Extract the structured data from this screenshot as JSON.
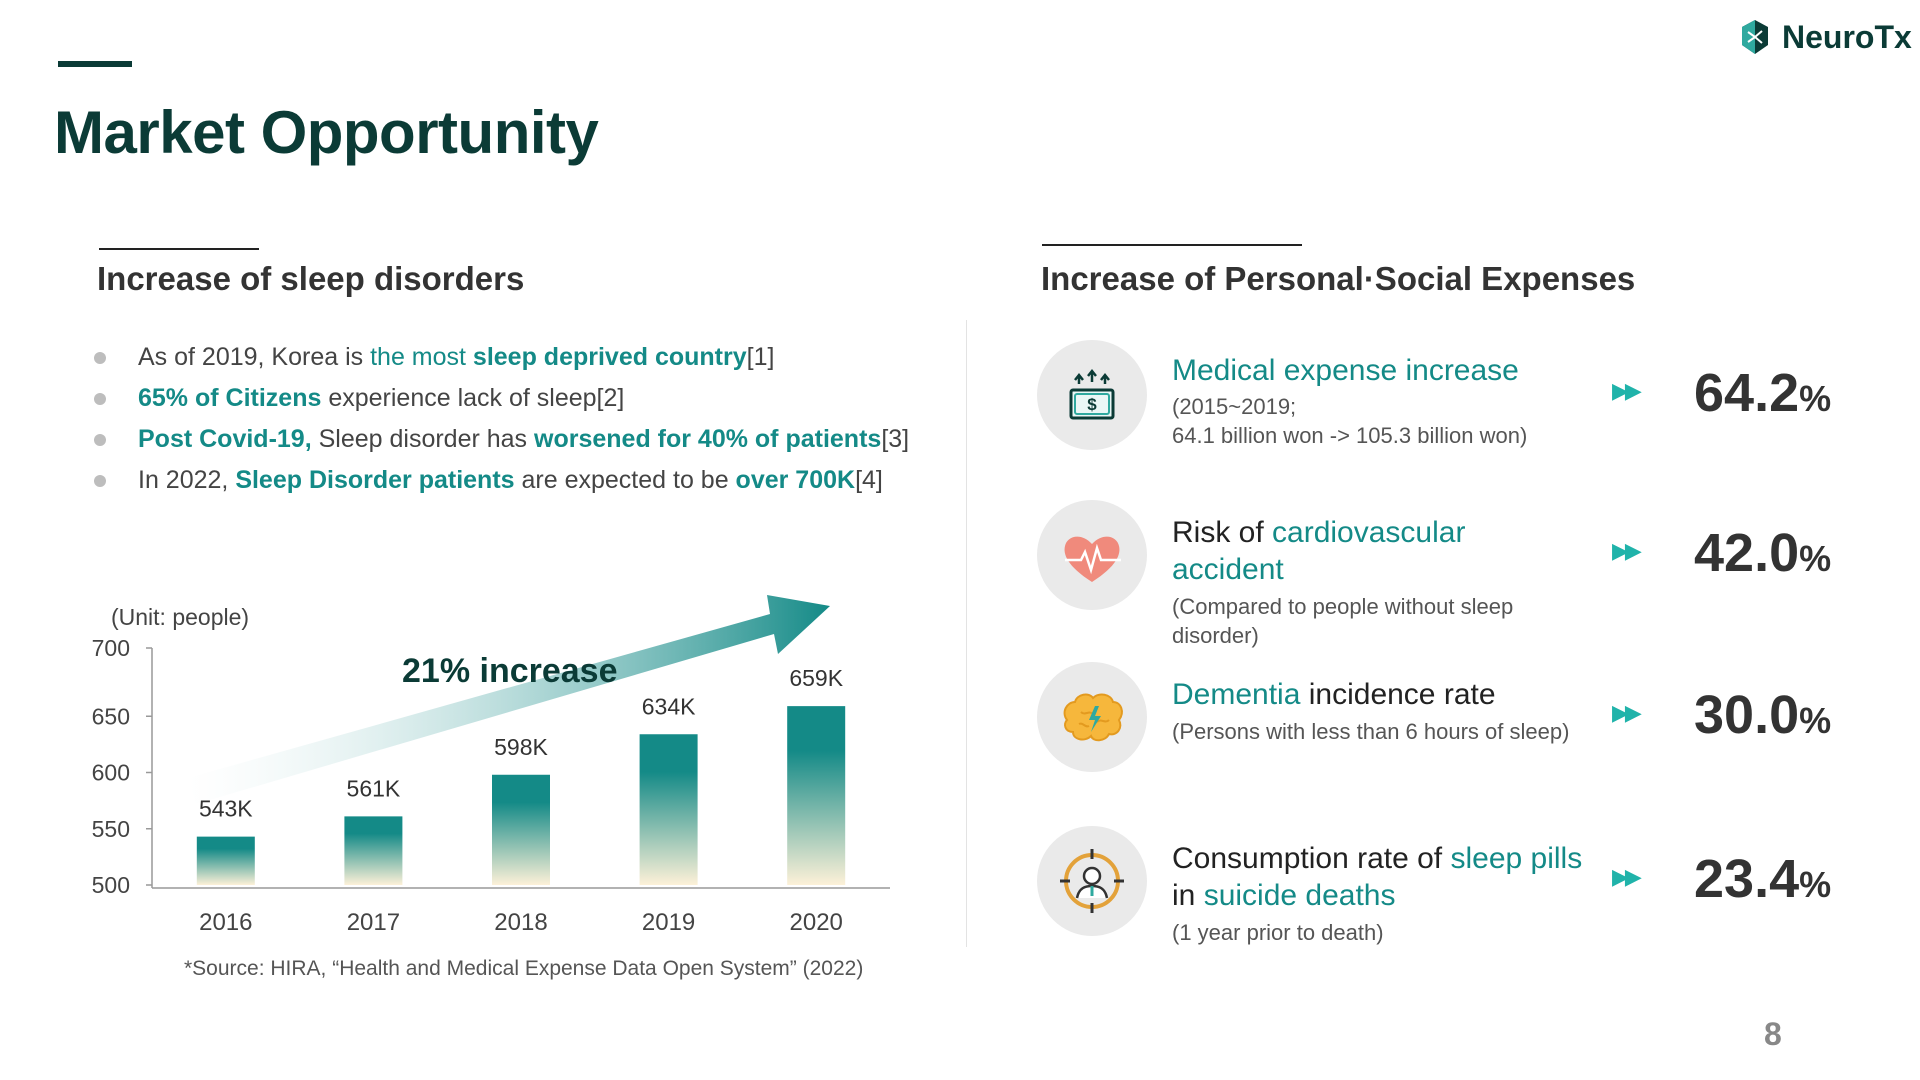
{
  "header": {
    "title": "Market Opportunity",
    "logo_text": "NeuroTx"
  },
  "left": {
    "heading": "Increase of sleep disorders",
    "bullets": [
      [
        {
          "t": "As of 2019, Korea is ",
          "s": "n"
        },
        {
          "t": "the most ",
          "s": "h"
        },
        {
          "t": "sleep deprived country",
          "s": "b"
        },
        {
          "t": "[1]",
          "s": "n"
        }
      ],
      [
        {
          "t": "65% of Citizens",
          "s": "b"
        },
        {
          "t": " experience lack of sleep[2]",
          "s": "n"
        }
      ],
      [
        {
          "t": "Post Covid-19,",
          "s": "b"
        },
        {
          "t": " Sleep disorder has ",
          "s": "n"
        },
        {
          "t": "worsened for 40% of patients",
          "s": "b"
        },
        {
          "t": "[3]",
          "s": "n"
        }
      ],
      [
        {
          "t": "In 2022, ",
          "s": "n"
        },
        {
          "t": "Sleep Disorder patients",
          "s": "b"
        },
        {
          "t": " are expected to be ",
          "s": "n"
        },
        {
          "t": "over 700K",
          "s": "b"
        },
        {
          "t": "[4]",
          "s": "n"
        }
      ]
    ],
    "unit_label": "(Unit: people)",
    "source": "*Source: HIRA, “Health and Medical Expense Data Open System” (2022)"
  },
  "chart_data": {
    "type": "bar",
    "categories": [
      "2016",
      "2017",
      "2018",
      "2019",
      "2020"
    ],
    "values": [
      543,
      561,
      598,
      634,
      659
    ],
    "data_labels": [
      "543K",
      "561K",
      "598K",
      "634K",
      "659K"
    ],
    "yticks": [
      "700",
      "650",
      "600",
      "550",
      "500"
    ],
    "ylim": [
      500,
      700
    ],
    "annotation": "21% increase",
    "bar_gradient": [
      "#148a87",
      "#fdf1d8"
    ],
    "grid": false
  },
  "right": {
    "heading": "Increase of Personal·Social Expenses",
    "rows": [
      {
        "icon": "money-icon",
        "label": [
          {
            "t": "Medical expense increase",
            "s": "h"
          }
        ],
        "sub": [
          "(2015~2019;",
          "64.1 billion won -> 105.3 billion won)"
        ],
        "arrow": "▶▶",
        "value": "64.2",
        "unit": "%"
      },
      {
        "icon": "heart-pulse-icon",
        "label": [
          {
            "t": "Risk of ",
            "s": "n"
          },
          {
            "t": "cardiovascular accident",
            "s": "h"
          }
        ],
        "sub": [
          "(Compared to people without sleep",
          "disorder)"
        ],
        "arrow": "▶▶",
        "value": "42.0",
        "unit": "%"
      },
      {
        "icon": "brain-icon",
        "label": [
          {
            "t": "Dementia",
            "s": "h"
          },
          {
            "t": " incidence rate",
            "s": "n"
          }
        ],
        "sub": [
          "(Persons with less than 6 hours of sleep)"
        ],
        "arrow": "▶▶",
        "value": "30.0",
        "unit": "%"
      },
      {
        "icon": "person-target-icon",
        "label": [
          {
            "t": "Consumption rate of ",
            "s": "n"
          },
          {
            "t": "sleep pills",
            "s": "h"
          },
          {
            "t": " in ",
            "s": "n"
          },
          {
            "t": "suicide deaths",
            "s": "h"
          }
        ],
        "sub": [
          "(1 year prior to death)"
        ],
        "arrow": "▶▶",
        "value": "23.4",
        "unit": "%"
      }
    ]
  },
  "page_number": "8",
  "colors": {
    "brand_dark": "#0b3b36",
    "accent_teal": "#148a87",
    "arrow_teal": "#20b3aa"
  }
}
